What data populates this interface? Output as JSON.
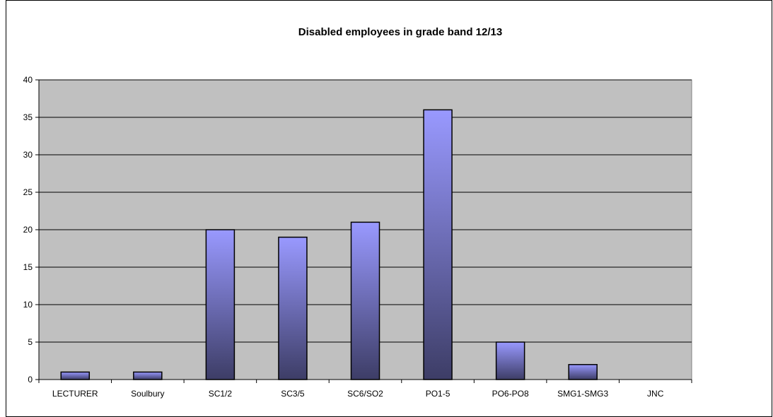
{
  "chart_data": {
    "type": "bar",
    "title": "Disabled employees in grade band 12/13",
    "xlabel": "",
    "ylabel": "",
    "categories": [
      "LECTURER",
      "Soulbury",
      "SC1/2",
      "SC3/5",
      "SC6/SO2",
      "PO1-5",
      "PO6-PO8",
      "SMG1-SMG3",
      "JNC"
    ],
    "values": [
      1,
      1,
      20,
      19,
      21,
      36,
      5,
      2,
      0
    ],
    "ylim": [
      0,
      40
    ],
    "yticks": [
      0,
      5,
      10,
      15,
      20,
      25,
      30,
      35,
      40
    ],
    "grid": true,
    "legend": "none",
    "colors": {
      "plot_background": "#c0c0c0",
      "bar_top": "#9999ff",
      "bar_bottom": "#3d3d66",
      "bar_border": "#000000",
      "gridline": "#000000"
    }
  }
}
